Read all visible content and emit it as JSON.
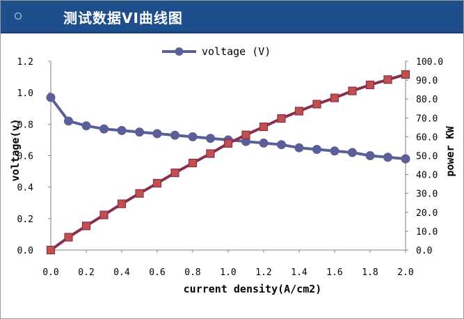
{
  "header": {
    "title": "测试数据VI曲线图"
  },
  "chart_data": {
    "type": "line",
    "xlabel": "current density(A/cm2)",
    "ylabel_left": "voltage(v)",
    "ylabel_right": "power KW",
    "xlim": [
      0.0,
      2.0
    ],
    "ylim_left": [
      0.0,
      1.2
    ],
    "ylim_right": [
      0.0,
      100.0
    ],
    "x_ticks": [
      "0.0",
      "0.2",
      "0.4",
      "0.6",
      "0.8",
      "1.0",
      "1.2",
      "1.4",
      "1.6",
      "1.8",
      "2.0"
    ],
    "y_left_ticks": [
      "0.0",
      "0.2",
      "0.4",
      "0.6",
      "0.8",
      "1.0",
      "1.2"
    ],
    "y_right_ticks": [
      "0.0",
      "10.0",
      "20.0",
      "30.0",
      "40.0",
      "50.0",
      "60.0",
      "70.0",
      "80.0",
      "90.0",
      "100.0"
    ],
    "legend_position": "top-center",
    "grid": false,
    "x": [
      0.0,
      0.1,
      0.2,
      0.3,
      0.4,
      0.5,
      0.6,
      0.7,
      0.8,
      0.9,
      1.0,
      1.1,
      1.2,
      1.3,
      1.4,
      1.5,
      1.6,
      1.7,
      1.8,
      1.9,
      2.0
    ],
    "series": [
      {
        "name": "voltage (V)",
        "axis": "left",
        "color": "#5b5f97",
        "marker": "circle",
        "values": [
          0.97,
          0.82,
          0.79,
          0.77,
          0.76,
          0.75,
          0.74,
          0.73,
          0.72,
          0.71,
          0.7,
          0.69,
          0.68,
          0.67,
          0.65,
          0.64,
          0.63,
          0.62,
          0.6,
          0.59,
          0.58
        ]
      },
      {
        "axis": "right",
        "color": "#8b2e4e",
        "marker_color": "#c0504d",
        "marker": "square",
        "values": [
          0.0,
          6.8,
          12.8,
          18.6,
          24.5,
          30.0,
          35.4,
          40.9,
          46.1,
          51.1,
          56.5,
          61.0,
          65.3,
          69.7,
          73.6,
          77.3,
          80.6,
          84.3,
          87.5,
          90.3,
          93.0
        ]
      }
    ]
  }
}
